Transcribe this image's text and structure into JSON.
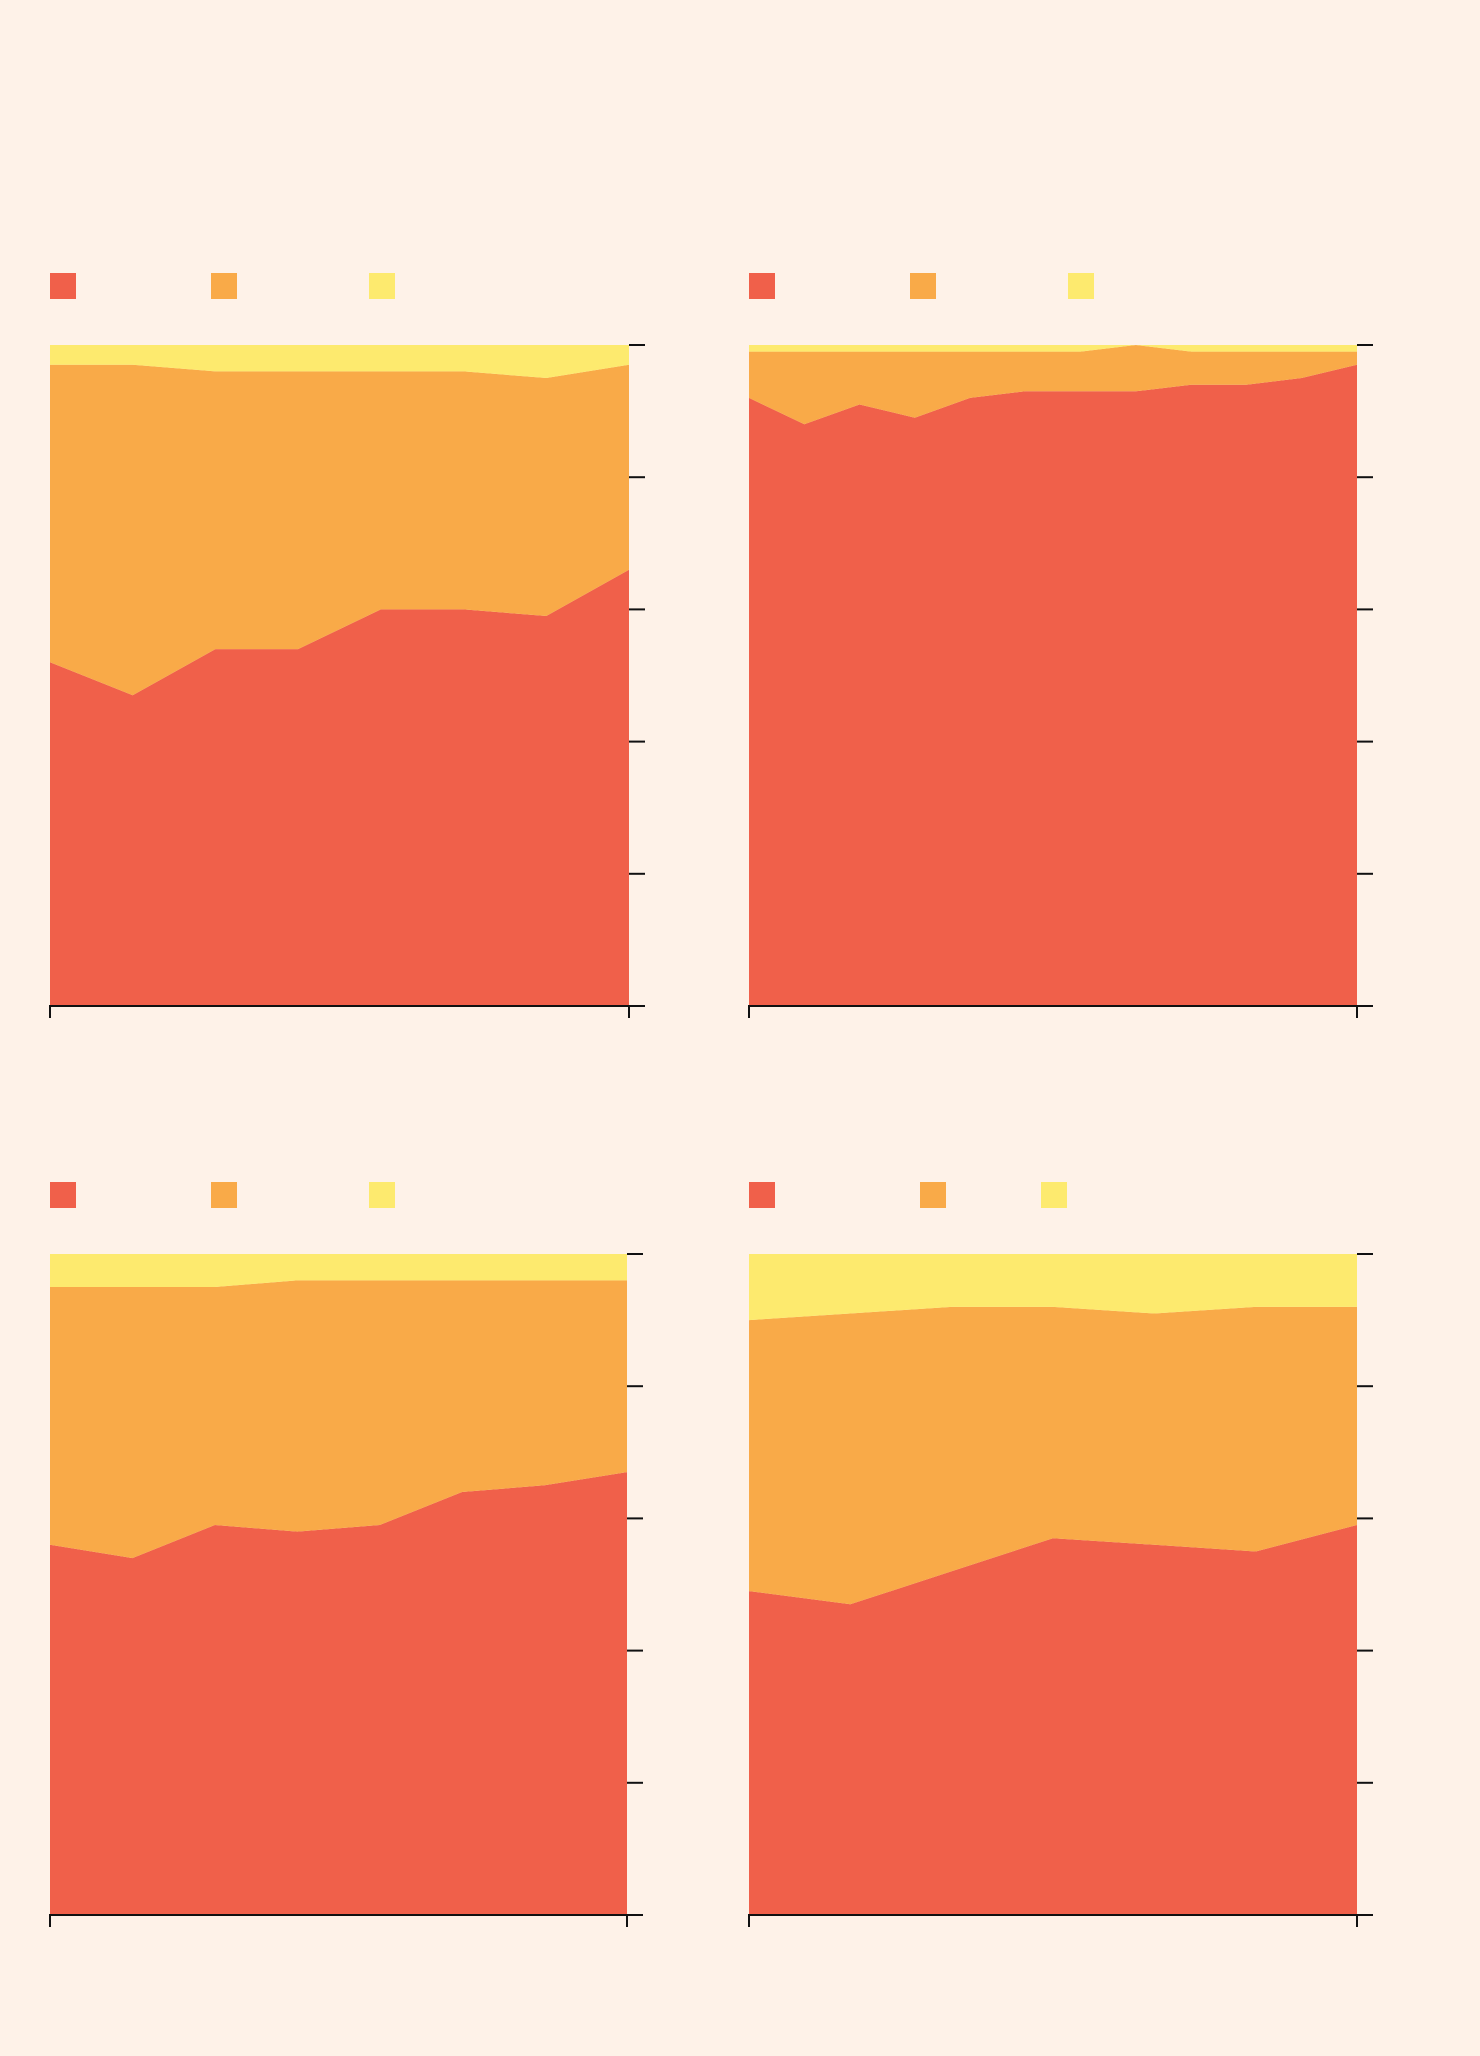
{
  "colors": {
    "background": "#fef2e8",
    "series": [
      "#f0604a",
      "#f9aa48",
      "#fdea6e"
    ],
    "axis": "#111111"
  },
  "chart_data": [
    {
      "type": "area",
      "stacked": true,
      "normalized": true,
      "ylim": [
        0,
        100
      ],
      "grid": false,
      "legend": "top-left",
      "series": [
        {
          "values": [
            52,
            47,
            54,
            54,
            60,
            60,
            59,
            66
          ]
        },
        {
          "values": [
            45,
            50,
            42,
            42,
            36,
            36,
            36,
            31
          ]
        },
        {
          "values": [
            3,
            3,
            4,
            4,
            4,
            4,
            5,
            3
          ]
        }
      ]
    },
    {
      "type": "area",
      "stacked": true,
      "normalized": true,
      "ylim": [
        0,
        100
      ],
      "grid": false,
      "legend": "top-left",
      "series": [
        {
          "values": [
            92,
            88,
            91,
            89,
            92,
            93,
            93,
            93,
            94,
            94,
            95,
            97
          ]
        },
        {
          "values": [
            7,
            11,
            8,
            10,
            7,
            6,
            6,
            7,
            5,
            5,
            4,
            2
          ]
        },
        {
          "values": [
            1,
            1,
            1,
            1,
            1,
            1,
            1,
            0,
            1,
            1,
            1,
            1
          ]
        }
      ]
    },
    {
      "type": "area",
      "stacked": true,
      "normalized": true,
      "ylim": [
        0,
        100
      ],
      "grid": false,
      "legend": "top-left",
      "series": [
        {
          "values": [
            56,
            54,
            59,
            58,
            59,
            64,
            65,
            67
          ]
        },
        {
          "values": [
            39,
            41,
            36,
            38,
            37,
            32,
            31,
            29
          ]
        },
        {
          "values": [
            5,
            5,
            5,
            4,
            4,
            4,
            4,
            4
          ]
        }
      ]
    },
    {
      "type": "area",
      "stacked": true,
      "normalized": true,
      "ylim": [
        0,
        100
      ],
      "grid": false,
      "legend": "top-left",
      "series": [
        {
          "values": [
            49,
            47,
            52,
            57,
            56,
            55,
            59
          ]
        },
        {
          "values": [
            41,
            44,
            40,
            35,
            35,
            37,
            33
          ]
        },
        {
          "values": [
            10,
            9,
            8,
            8,
            9,
            8,
            8
          ]
        }
      ]
    }
  ]
}
